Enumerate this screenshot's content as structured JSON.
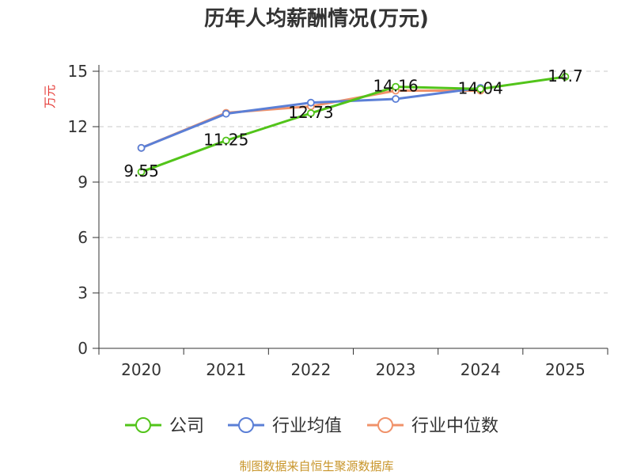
{
  "chart_data": {
    "type": "line",
    "title": "历年人均薪酬情况(万元)",
    "ylabel": "万元",
    "xlabel": "",
    "categories": [
      "2020",
      "2021",
      "2022",
      "2023",
      "2024",
      "2025"
    ],
    "ylim": [
      0,
      15
    ],
    "yticks": [
      "0",
      "3",
      "6",
      "9",
      "12",
      "15"
    ],
    "grid": true,
    "legend_position": "bottom",
    "series": [
      {
        "name": "公司",
        "color": "#52c41a",
        "values": [
          9.55,
          11.25,
          12.73,
          14.16,
          14.04,
          14.7
        ],
        "labels": [
          "9.55",
          "11.25",
          "12.73",
          "14.16",
          "14.04",
          "14.7"
        ]
      },
      {
        "name": "行业均值",
        "color": "#5b7fd6",
        "values": [
          10.85,
          12.7,
          13.3,
          13.5,
          14.1,
          null
        ]
      },
      {
        "name": "行业中位数",
        "color": "#f0926a",
        "values": [
          10.85,
          12.75,
          13.1,
          13.95,
          13.95,
          null
        ]
      }
    ],
    "source": "制图数据来自恒生聚源数据库"
  }
}
